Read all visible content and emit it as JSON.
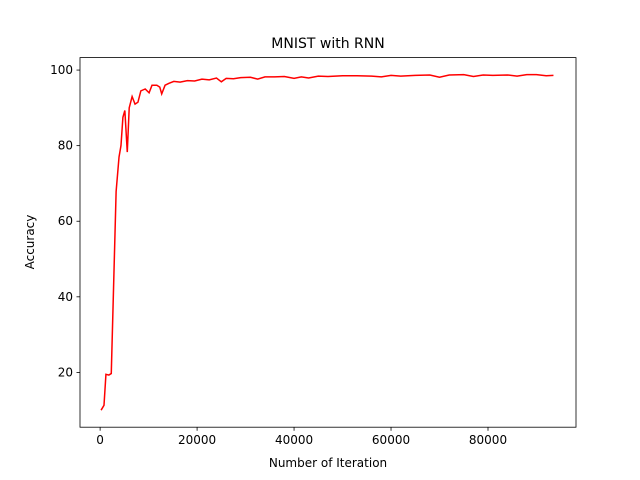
{
  "chart_data": {
    "type": "line",
    "title": "MNIST with RNN",
    "x_label": "Number of Iteration",
    "y_label": "Accuracy",
    "x": [
      200,
      800,
      1200,
      1800,
      2300,
      3300,
      3900,
      4300,
      4700,
      5100,
      5600,
      6000,
      6600,
      7200,
      7800,
      8400,
      9300,
      10100,
      10700,
      11700,
      12300,
      12700,
      13400,
      14200,
      15200,
      16500,
      18000,
      19500,
      21000,
      22500,
      24000,
      25000,
      26000,
      27500,
      29000,
      31000,
      32500,
      34000,
      36000,
      38000,
      40000,
      41500,
      43000,
      45000,
      47000,
      50000,
      53000,
      56000,
      58000,
      60000,
      62000,
      65000,
      68000,
      70000,
      72000,
      75000,
      77000,
      79000,
      81000,
      84000,
      86000,
      88000,
      90000,
      92000,
      93500
    ],
    "series": [
      {
        "name": "accuracy",
        "color": "#ff0000",
        "values": [
          10,
          11.3,
          19.5,
          19.3,
          19.7,
          67.9,
          77,
          80,
          87.5,
          89.3,
          78.3,
          90,
          93,
          91,
          91.5,
          94.5,
          95,
          94,
          96,
          96,
          95.5,
          93.7,
          96,
          96.5,
          97,
          96.8,
          97.2,
          97.1,
          97.6,
          97.4,
          97.9,
          96.9,
          97.8,
          97.7,
          98,
          98.1,
          97.6,
          98.2,
          98.2,
          98.3,
          97.8,
          98.2,
          97.9,
          98.4,
          98.3,
          98.5,
          98.5,
          98.4,
          98.2,
          98.6,
          98.4,
          98.6,
          98.7,
          98.1,
          98.7,
          98.8,
          98.3,
          98.7,
          98.6,
          98.7,
          98.4,
          98.8,
          98.8,
          98.5,
          98.6
        ]
      }
    ],
    "xlim": [
      -4150,
      98150
    ],
    "ylim": [
      5.5,
      103.3
    ],
    "xticks": [
      0,
      20000,
      40000,
      60000,
      80000
    ],
    "yticks": [
      20,
      40,
      60,
      80,
      100
    ],
    "grid": false
  }
}
